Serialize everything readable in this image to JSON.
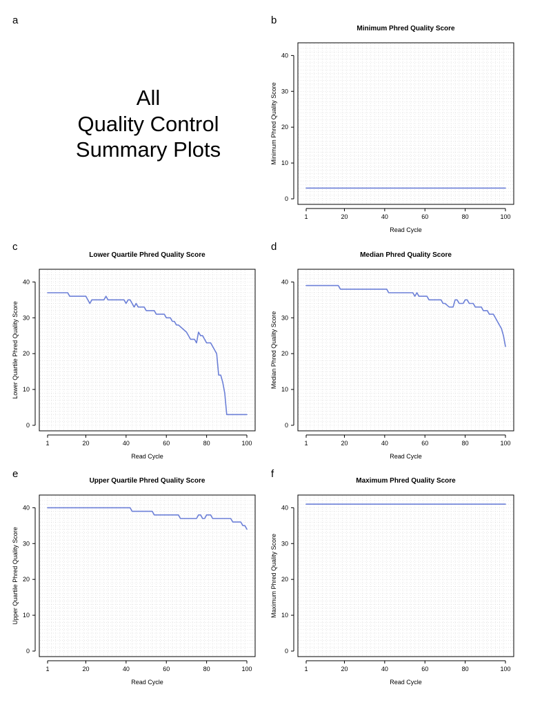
{
  "overview": {
    "letter": "a",
    "title_lines": [
      "All",
      "Quality Control",
      "Summary Plots"
    ]
  },
  "chart_data": [
    {
      "id": "b",
      "letter": "b",
      "type": "line",
      "title": "Minimum Phred Quality Score",
      "xlabel": "Read Cycle",
      "ylabel": "Minimum Phred Quality Score",
      "xlim": [
        1,
        100
      ],
      "ylim": [
        0,
        42
      ],
      "xticks": [
        1,
        20,
        40,
        60,
        80,
        100
      ],
      "yticks": [
        0,
        10,
        20,
        30,
        40
      ],
      "grid": true,
      "line_color": "#6b7fd7",
      "x": [
        1,
        100
      ],
      "y": [
        3,
        3
      ]
    },
    {
      "id": "c",
      "letter": "c",
      "type": "line",
      "title": "Lower Quartile Phred Quality Score",
      "xlabel": "Read Cycle",
      "ylabel": "Lower Quartile Phred Quality Score",
      "xlim": [
        1,
        100
      ],
      "ylim": [
        0,
        42
      ],
      "xticks": [
        1,
        20,
        40,
        60,
        80,
        100
      ],
      "yticks": [
        0,
        10,
        20,
        30,
        40
      ],
      "grid": true,
      "line_color": "#6b7fd7",
      "x": [
        1,
        11,
        12,
        20,
        22,
        23,
        29,
        30,
        31,
        39,
        40,
        41,
        42,
        43,
        44,
        45,
        46,
        49,
        50,
        54,
        55,
        59,
        60,
        62,
        63,
        64,
        65,
        66,
        68,
        70,
        72,
        73,
        74,
        75,
        76,
        77,
        78,
        79,
        80,
        81,
        82,
        83,
        84,
        85,
        86,
        87,
        88,
        89,
        90,
        91,
        100
      ],
      "y": [
        37,
        37,
        36,
        36,
        34,
        35,
        35,
        36,
        35,
        35,
        34,
        35,
        35,
        34,
        33,
        34,
        33,
        33,
        32,
        32,
        31,
        31,
        30,
        30,
        29,
        29,
        28,
        28,
        27,
        26,
        24,
        24,
        24,
        23,
        26,
        25,
        25,
        24,
        23,
        23,
        23,
        22,
        21,
        20,
        14,
        14,
        12,
        9,
        3,
        3,
        3
      ]
    },
    {
      "id": "d",
      "letter": "d",
      "type": "line",
      "title": "Median Phred Quality Score",
      "xlabel": "Read Cycle",
      "ylabel": "Median Phred Quality Score",
      "xlim": [
        1,
        100
      ],
      "ylim": [
        0,
        42
      ],
      "xticks": [
        1,
        20,
        40,
        60,
        80,
        100
      ],
      "yticks": [
        0,
        10,
        20,
        30,
        40
      ],
      "grid": true,
      "line_color": "#6b7fd7",
      "x": [
        1,
        17,
        18,
        41,
        42,
        53,
        54,
        55,
        56,
        57,
        58,
        61,
        62,
        65,
        66,
        67,
        68,
        69,
        70,
        72,
        73,
        74,
        75,
        76,
        77,
        78,
        79,
        80,
        81,
        82,
        83,
        84,
        85,
        87,
        88,
        89,
        90,
        91,
        92,
        93,
        94,
        95,
        96,
        97,
        98,
        99,
        100
      ],
      "y": [
        39,
        39,
        38,
        38,
        37,
        37,
        37,
        36,
        37,
        36,
        36,
        36,
        35,
        35,
        35,
        35,
        35,
        34,
        34,
        33,
        33,
        33,
        35,
        35,
        34,
        34,
        34,
        35,
        35,
        34,
        34,
        34,
        33,
        33,
        33,
        32,
        32,
        32,
        31,
        31,
        31,
        30,
        29,
        28,
        27,
        25,
        22
      ]
    },
    {
      "id": "e",
      "letter": "e",
      "type": "line",
      "title": "Upper Quartile Phred Quality Score",
      "xlabel": "Read Cycle",
      "ylabel": "Upper Quartile Phred Quality Score",
      "xlim": [
        1,
        100
      ],
      "ylim": [
        0,
        42
      ],
      "xticks": [
        1,
        20,
        40,
        60,
        80,
        100
      ],
      "yticks": [
        0,
        10,
        20,
        30,
        40
      ],
      "grid": true,
      "line_color": "#6b7fd7",
      "x": [
        1,
        42,
        43,
        53,
        54,
        66,
        67,
        74,
        75,
        76,
        77,
        78,
        79,
        80,
        81,
        82,
        83,
        84,
        90,
        91,
        92,
        93,
        96,
        97,
        98,
        99,
        100
      ],
      "y": [
        40,
        40,
        39,
        39,
        38,
        38,
        37,
        37,
        37,
        38,
        38,
        37,
        37,
        38,
        38,
        38,
        37,
        37,
        37,
        37,
        37,
        36,
        36,
        36,
        35,
        35,
        34
      ]
    },
    {
      "id": "f",
      "letter": "f",
      "type": "line",
      "title": "Maximum Phred Quality Score",
      "xlabel": "Read Cycle",
      "ylabel": "Maximum Phred Quality Score",
      "xlim": [
        1,
        100
      ],
      "ylim": [
        0,
        42
      ],
      "xticks": [
        1,
        20,
        40,
        60,
        80,
        100
      ],
      "yticks": [
        0,
        10,
        20,
        30,
        40
      ],
      "grid": true,
      "line_color": "#6b7fd7",
      "x": [
        1,
        100
      ],
      "y": [
        41,
        41
      ]
    }
  ]
}
